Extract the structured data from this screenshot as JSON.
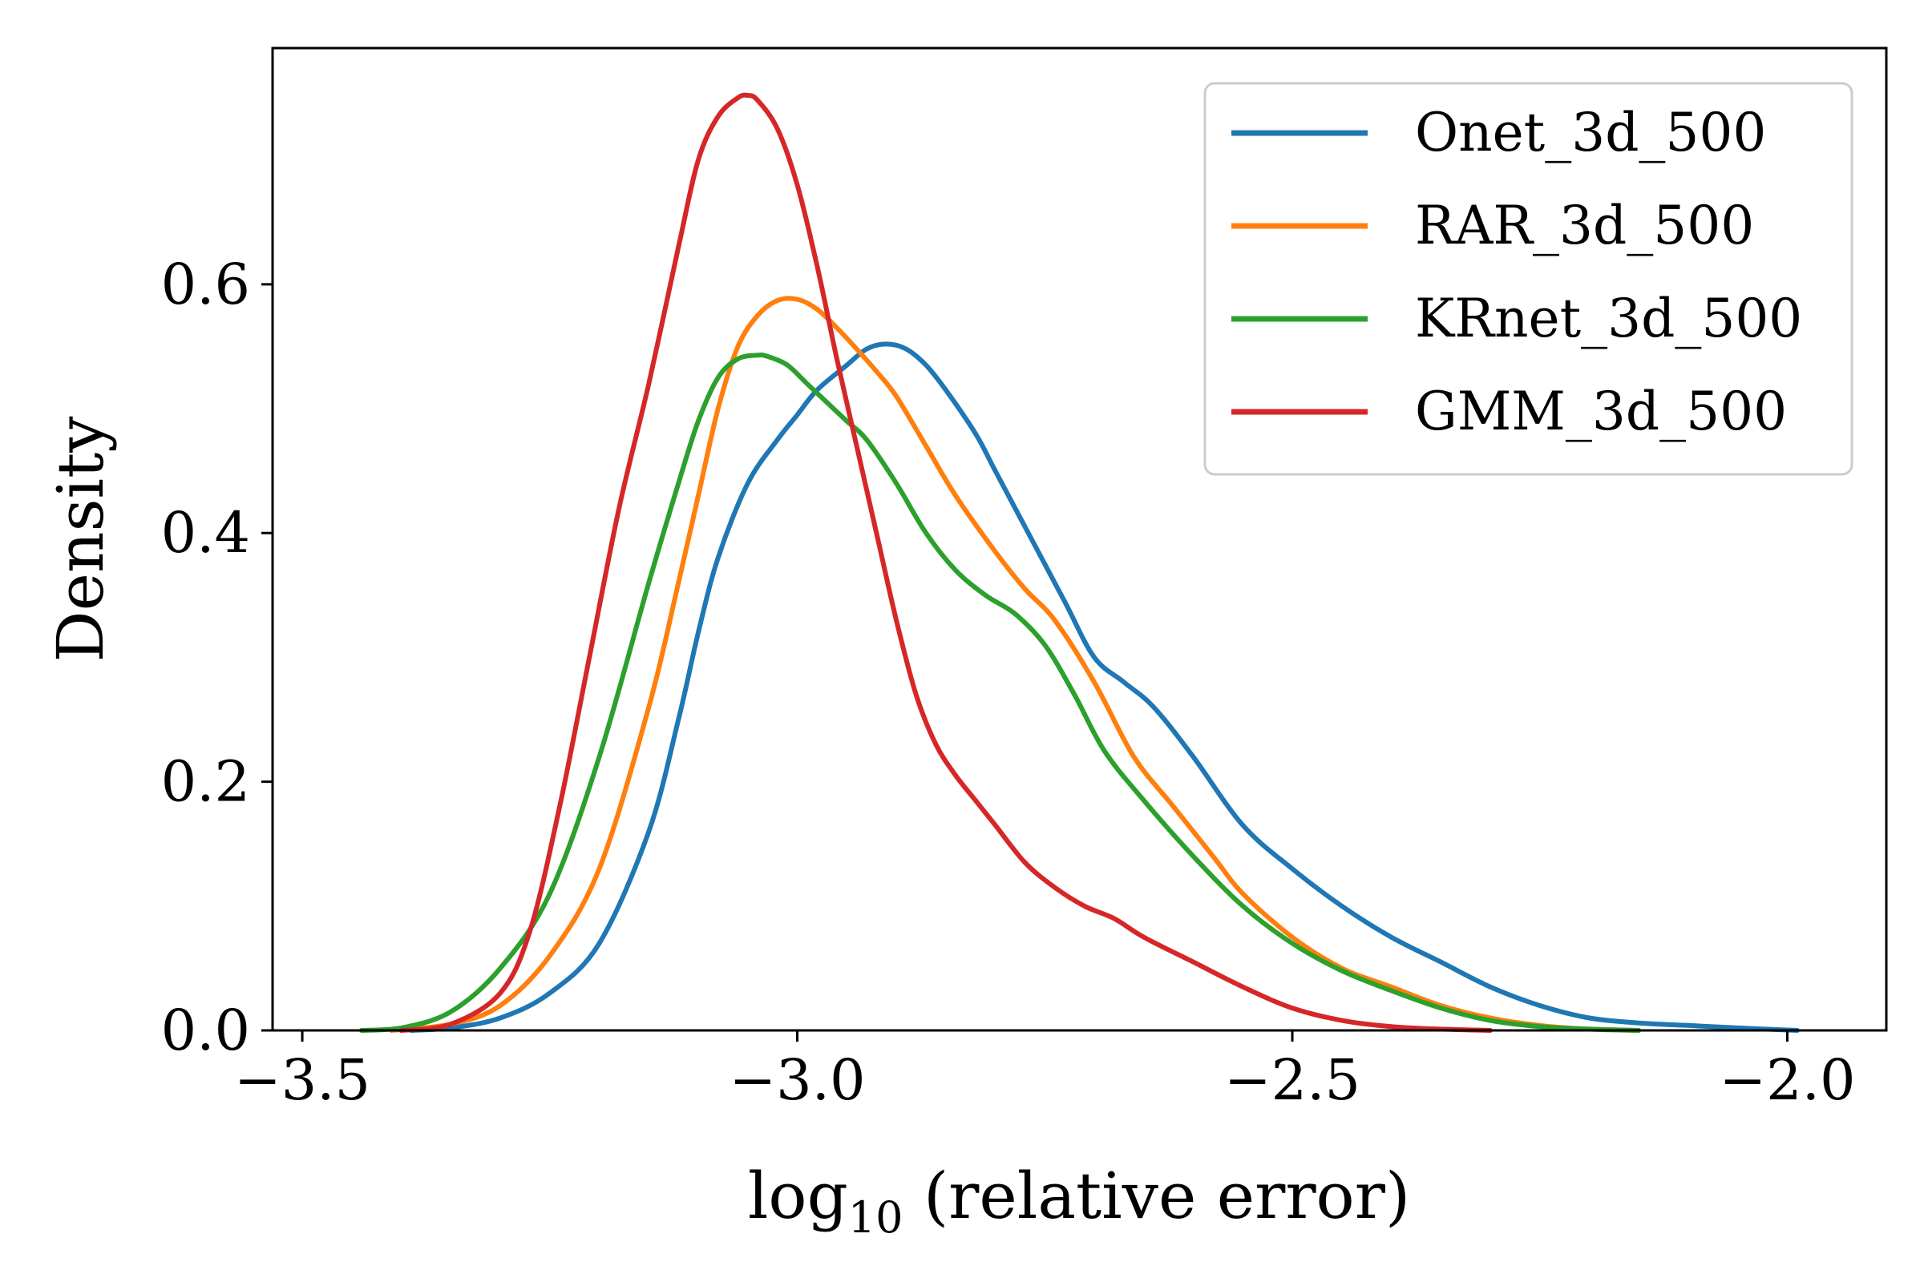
{
  "chart_data": {
    "type": "line",
    "title": "",
    "xlabel": "log10 (relative error)",
    "xlabel_parts": {
      "base": "log",
      "sub": "10",
      "rest": " (relative error)"
    },
    "ylabel": "Density",
    "xlim": [
      -3.53,
      -1.9
    ],
    "ylim": [
      0,
      0.79
    ],
    "xticks": [
      -3.5,
      -3.0,
      -2.5,
      -2.0
    ],
    "xtick_labels": [
      "−3.5",
      "−3.0",
      "−2.5",
      "−2.0"
    ],
    "yticks": [
      0.0,
      0.2,
      0.4,
      0.6
    ],
    "ytick_labels": [
      "0.0",
      "0.2",
      "0.4",
      "0.6"
    ],
    "grid": false,
    "legend_position": "top-right",
    "series": [
      {
        "name": "Onet_3d_500",
        "color": "#1f77b4",
        "x": [
          -3.39,
          -3.35,
          -3.3,
          -3.25,
          -3.2,
          -3.15,
          -3.12,
          -3.1,
          -3.08,
          -3.05,
          -3.02,
          -3.0,
          -2.98,
          -2.95,
          -2.93,
          -2.91,
          -2.89,
          -2.87,
          -2.85,
          -2.82,
          -2.8,
          -2.77,
          -2.73,
          -2.7,
          -2.67,
          -2.64,
          -2.6,
          -2.55,
          -2.5,
          -2.45,
          -2.4,
          -2.35,
          -2.3,
          -2.25,
          -2.2,
          -2.15,
          -2.1,
          -2.05,
          -1.99
        ],
        "y": [
          0.0,
          0.002,
          0.01,
          0.03,
          0.07,
          0.16,
          0.25,
          0.32,
          0.38,
          0.44,
          0.475,
          0.495,
          0.515,
          0.535,
          0.548,
          0.552,
          0.548,
          0.535,
          0.515,
          0.48,
          0.45,
          0.405,
          0.345,
          0.3,
          0.28,
          0.26,
          0.22,
          0.165,
          0.13,
          0.1,
          0.075,
          0.055,
          0.035,
          0.02,
          0.01,
          0.006,
          0.004,
          0.002,
          0.0
        ]
      },
      {
        "name": "RAR_3d_500",
        "color": "#ff7f0e",
        "x": [
          -3.41,
          -3.35,
          -3.3,
          -3.25,
          -3.2,
          -3.15,
          -3.12,
          -3.1,
          -3.08,
          -3.06,
          -3.04,
          -3.02,
          -3.0,
          -2.98,
          -2.96,
          -2.94,
          -2.92,
          -2.9,
          -2.87,
          -2.84,
          -2.8,
          -2.77,
          -2.74,
          -2.7,
          -2.66,
          -2.62,
          -2.58,
          -2.55,
          -2.5,
          -2.45,
          -2.4,
          -2.35,
          -2.3,
          -2.25,
          -2.2,
          -2.15
        ],
        "y": [
          0.0,
          0.005,
          0.02,
          0.06,
          0.13,
          0.26,
          0.36,
          0.43,
          0.5,
          0.55,
          0.575,
          0.587,
          0.588,
          0.58,
          0.565,
          0.548,
          0.53,
          0.51,
          0.47,
          0.43,
          0.385,
          0.355,
          0.33,
          0.28,
          0.22,
          0.18,
          0.14,
          0.11,
          0.075,
          0.05,
          0.035,
          0.02,
          0.01,
          0.004,
          0.001,
          0.0
        ]
      },
      {
        "name": "KRnet_3d_500",
        "color": "#2ca02c",
        "x": [
          -3.44,
          -3.4,
          -3.35,
          -3.3,
          -3.25,
          -3.2,
          -3.15,
          -3.12,
          -3.1,
          -3.08,
          -3.06,
          -3.04,
          -3.03,
          -3.01,
          -2.99,
          -2.97,
          -2.95,
          -2.93,
          -2.9,
          -2.87,
          -2.84,
          -2.81,
          -2.78,
          -2.75,
          -2.72,
          -2.69,
          -2.65,
          -2.6,
          -2.55,
          -2.5,
          -2.45,
          -2.4,
          -2.35,
          -2.3,
          -2.25,
          -2.2,
          -2.15
        ],
        "y": [
          0.0,
          0.002,
          0.015,
          0.05,
          0.11,
          0.22,
          0.36,
          0.44,
          0.49,
          0.525,
          0.54,
          0.543,
          0.542,
          0.535,
          0.52,
          0.505,
          0.49,
          0.475,
          0.44,
          0.4,
          0.37,
          0.35,
          0.335,
          0.31,
          0.27,
          0.225,
          0.185,
          0.14,
          0.1,
          0.07,
          0.048,
          0.032,
          0.018,
          0.008,
          0.003,
          0.001,
          0.0
        ]
      },
      {
        "name": "GMM_3d_500",
        "color": "#d62728",
        "x": [
          -3.4,
          -3.35,
          -3.3,
          -3.27,
          -3.24,
          -3.21,
          -3.18,
          -3.15,
          -3.12,
          -3.1,
          -3.08,
          -3.06,
          -3.05,
          -3.04,
          -3.02,
          -3.0,
          -2.98,
          -2.96,
          -2.94,
          -2.92,
          -2.9,
          -2.88,
          -2.86,
          -2.84,
          -2.82,
          -2.8,
          -2.77,
          -2.74,
          -2.71,
          -2.68,
          -2.65,
          -2.6,
          -2.55,
          -2.5,
          -2.45,
          -2.4,
          -2.35,
          -2.3
        ],
        "y": [
          0.0,
          0.005,
          0.03,
          0.08,
          0.18,
          0.3,
          0.42,
          0.52,
          0.63,
          0.7,
          0.735,
          0.75,
          0.752,
          0.748,
          0.725,
          0.68,
          0.615,
          0.54,
          0.47,
          0.4,
          0.33,
          0.27,
          0.23,
          0.205,
          0.185,
          0.165,
          0.135,
          0.115,
          0.1,
          0.09,
          0.075,
          0.055,
          0.035,
          0.018,
          0.008,
          0.003,
          0.001,
          0.0
        ]
      }
    ]
  }
}
